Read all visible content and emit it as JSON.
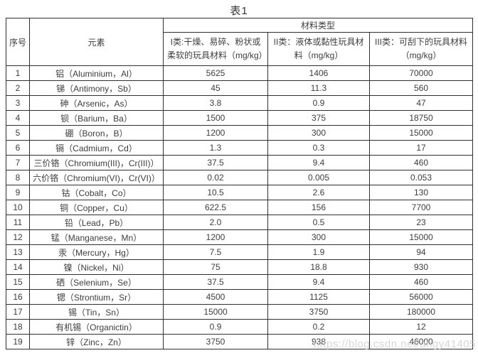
{
  "title": "表1",
  "table": {
    "header": {
      "serial": "序号",
      "element": "元素",
      "material_type": "材料类型",
      "sub_cols": [
        "I类:干燥、易碎、粉状或柔软的玩具材料（mg/kg）",
        "II类：液体或黏性玩具材料（mg/kg）",
        "III类：可刮下的玩具材料（mg/kg）"
      ]
    },
    "rows": [
      {
        "no": "1",
        "element": "铝（Aluminium，Al）",
        "c1": "5625",
        "c2": "1406",
        "c3": "70000"
      },
      {
        "no": "2",
        "element": "锑（Antimony，Sb）",
        "c1": "45",
        "c2": "11.3",
        "c3": "560"
      },
      {
        "no": "3",
        "element": "砷（Arsenic，As）",
        "c1": "3.8",
        "c2": "0.9",
        "c3": "47"
      },
      {
        "no": "4",
        "element": "钡（Barium，Ba）",
        "c1": "1500",
        "c2": "375",
        "c3": "18750"
      },
      {
        "no": "5",
        "element": "硼（Boron，B）",
        "c1": "1200",
        "c2": "300",
        "c3": "15000"
      },
      {
        "no": "6",
        "element": "镉（Cadmium，Cd）",
        "c1": "1.3",
        "c2": "0.3",
        "c3": "17"
      },
      {
        "no": "7",
        "element": "三价铬（Chromium(III)，Cr(III)）",
        "c1": "37.5",
        "c2": "9.4",
        "c3": "460"
      },
      {
        "no": "8",
        "element": "六价铬（Chromium(VI)，Cr(VI)）",
        "c1": "0.02",
        "c2": "0.005",
        "c3": "0.053"
      },
      {
        "no": "9",
        "element": "钴（Cobalt，Co）",
        "c1": "10.5",
        "c2": "2.6",
        "c3": "130"
      },
      {
        "no": "10",
        "element": "铜（Copper，Cu）",
        "c1": "622.5",
        "c2": "156",
        "c3": "7700"
      },
      {
        "no": "11",
        "element": "铅（Lead，Pb）",
        "c1": "2.0",
        "c2": "0.5",
        "c3": "23"
      },
      {
        "no": "12",
        "element": "锰（Manganese，Mn）",
        "c1": "1200",
        "c2": "300",
        "c3": "15000"
      },
      {
        "no": "13",
        "element": "汞（Mercury，Hg）",
        "c1": "7.5",
        "c2": "1.9",
        "c3": "94"
      },
      {
        "no": "14",
        "element": "镍（Nickel，Ni）",
        "c1": "75",
        "c2": "18.8",
        "c3": "930"
      },
      {
        "no": "15",
        "element": "硒（Selenium，Se）",
        "c1": "37.5",
        "c2": "9.4",
        "c3": "460"
      },
      {
        "no": "16",
        "element": "锶（Strontium，Sr）",
        "c1": "4500",
        "c2": "1125",
        "c3": "56000"
      },
      {
        "no": "17",
        "element": "锡（Tin，Sn）",
        "c1": "15000",
        "c2": "3750",
        "c3": "180000"
      },
      {
        "no": "18",
        "element": "有机锡（Organictin）",
        "c1": "0.9",
        "c2": "0.2",
        "c3": "12"
      },
      {
        "no": "19",
        "element": "锌（Zinc，Zn）",
        "c1": "3750",
        "c2": "938",
        "c3": "46000"
      }
    ]
  },
  "watermark": "https://blog.csdn.net/angy41405",
  "colors": {
    "border": "#2f2f2f",
    "text": "#3d3d3d",
    "watermark": "#c9c9c9",
    "background": "#ffffff"
  }
}
